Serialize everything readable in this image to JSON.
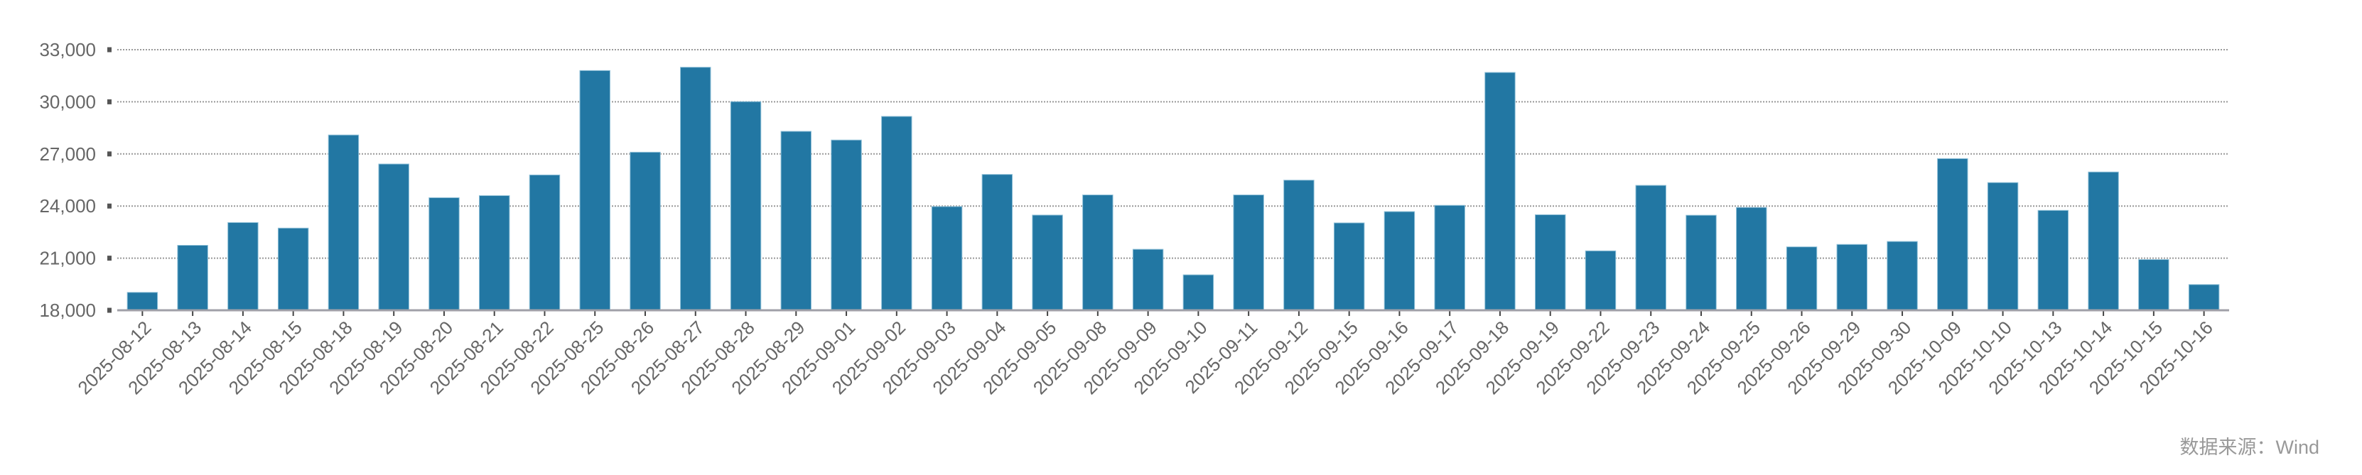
{
  "chart_data": {
    "type": "bar",
    "title": "",
    "xlabel": "",
    "ylabel": "",
    "ylim": [
      18000,
      33000
    ],
    "yticks": [
      18000,
      21000,
      24000,
      27000,
      30000,
      33000
    ],
    "ytick_labels": [
      "18,000",
      "21,000",
      "24,000",
      "27,000",
      "30,000",
      "33,000"
    ],
    "grid": "horizontal dotted",
    "bar_color": "#2277a3",
    "categories": [
      "2025-08-12",
      "2025-08-13",
      "2025-08-14",
      "2025-08-15",
      "2025-08-18",
      "2025-08-19",
      "2025-08-20",
      "2025-08-21",
      "2025-08-22",
      "2025-08-25",
      "2025-08-26",
      "2025-08-27",
      "2025-08-28",
      "2025-08-29",
      "2025-09-01",
      "2025-09-02",
      "2025-09-03",
      "2025-09-04",
      "2025-09-05",
      "2025-09-08",
      "2025-09-09",
      "2025-09-10",
      "2025-09-11",
      "2025-09-12",
      "2025-09-15",
      "2025-09-16",
      "2025-09-17",
      "2025-09-18",
      "2025-09-19",
      "2025-09-22",
      "2025-09-23",
      "2025-09-24",
      "2025-09-25",
      "2025-09-26",
      "2025-09-29",
      "2025-09-30",
      "2025-10-09",
      "2025-10-10",
      "2025-10-13",
      "2025-10-14",
      "2025-10-15",
      "2025-10-16"
    ],
    "values": [
      19030,
      21740,
      23050,
      22730,
      28090,
      26420,
      24480,
      24600,
      25790,
      31800,
      27100,
      31990,
      30010,
      28300,
      27800,
      29160,
      23970,
      25820,
      23480,
      24640,
      21510,
      20040,
      24640,
      25490,
      23030,
      23680,
      24040,
      31690,
      23500,
      21420,
      25190,
      23470,
      23920,
      21650,
      21790,
      21960,
      26730,
      25350,
      23750,
      25960,
      20920,
      19480
    ]
  },
  "source": "数据来源：Wind"
}
